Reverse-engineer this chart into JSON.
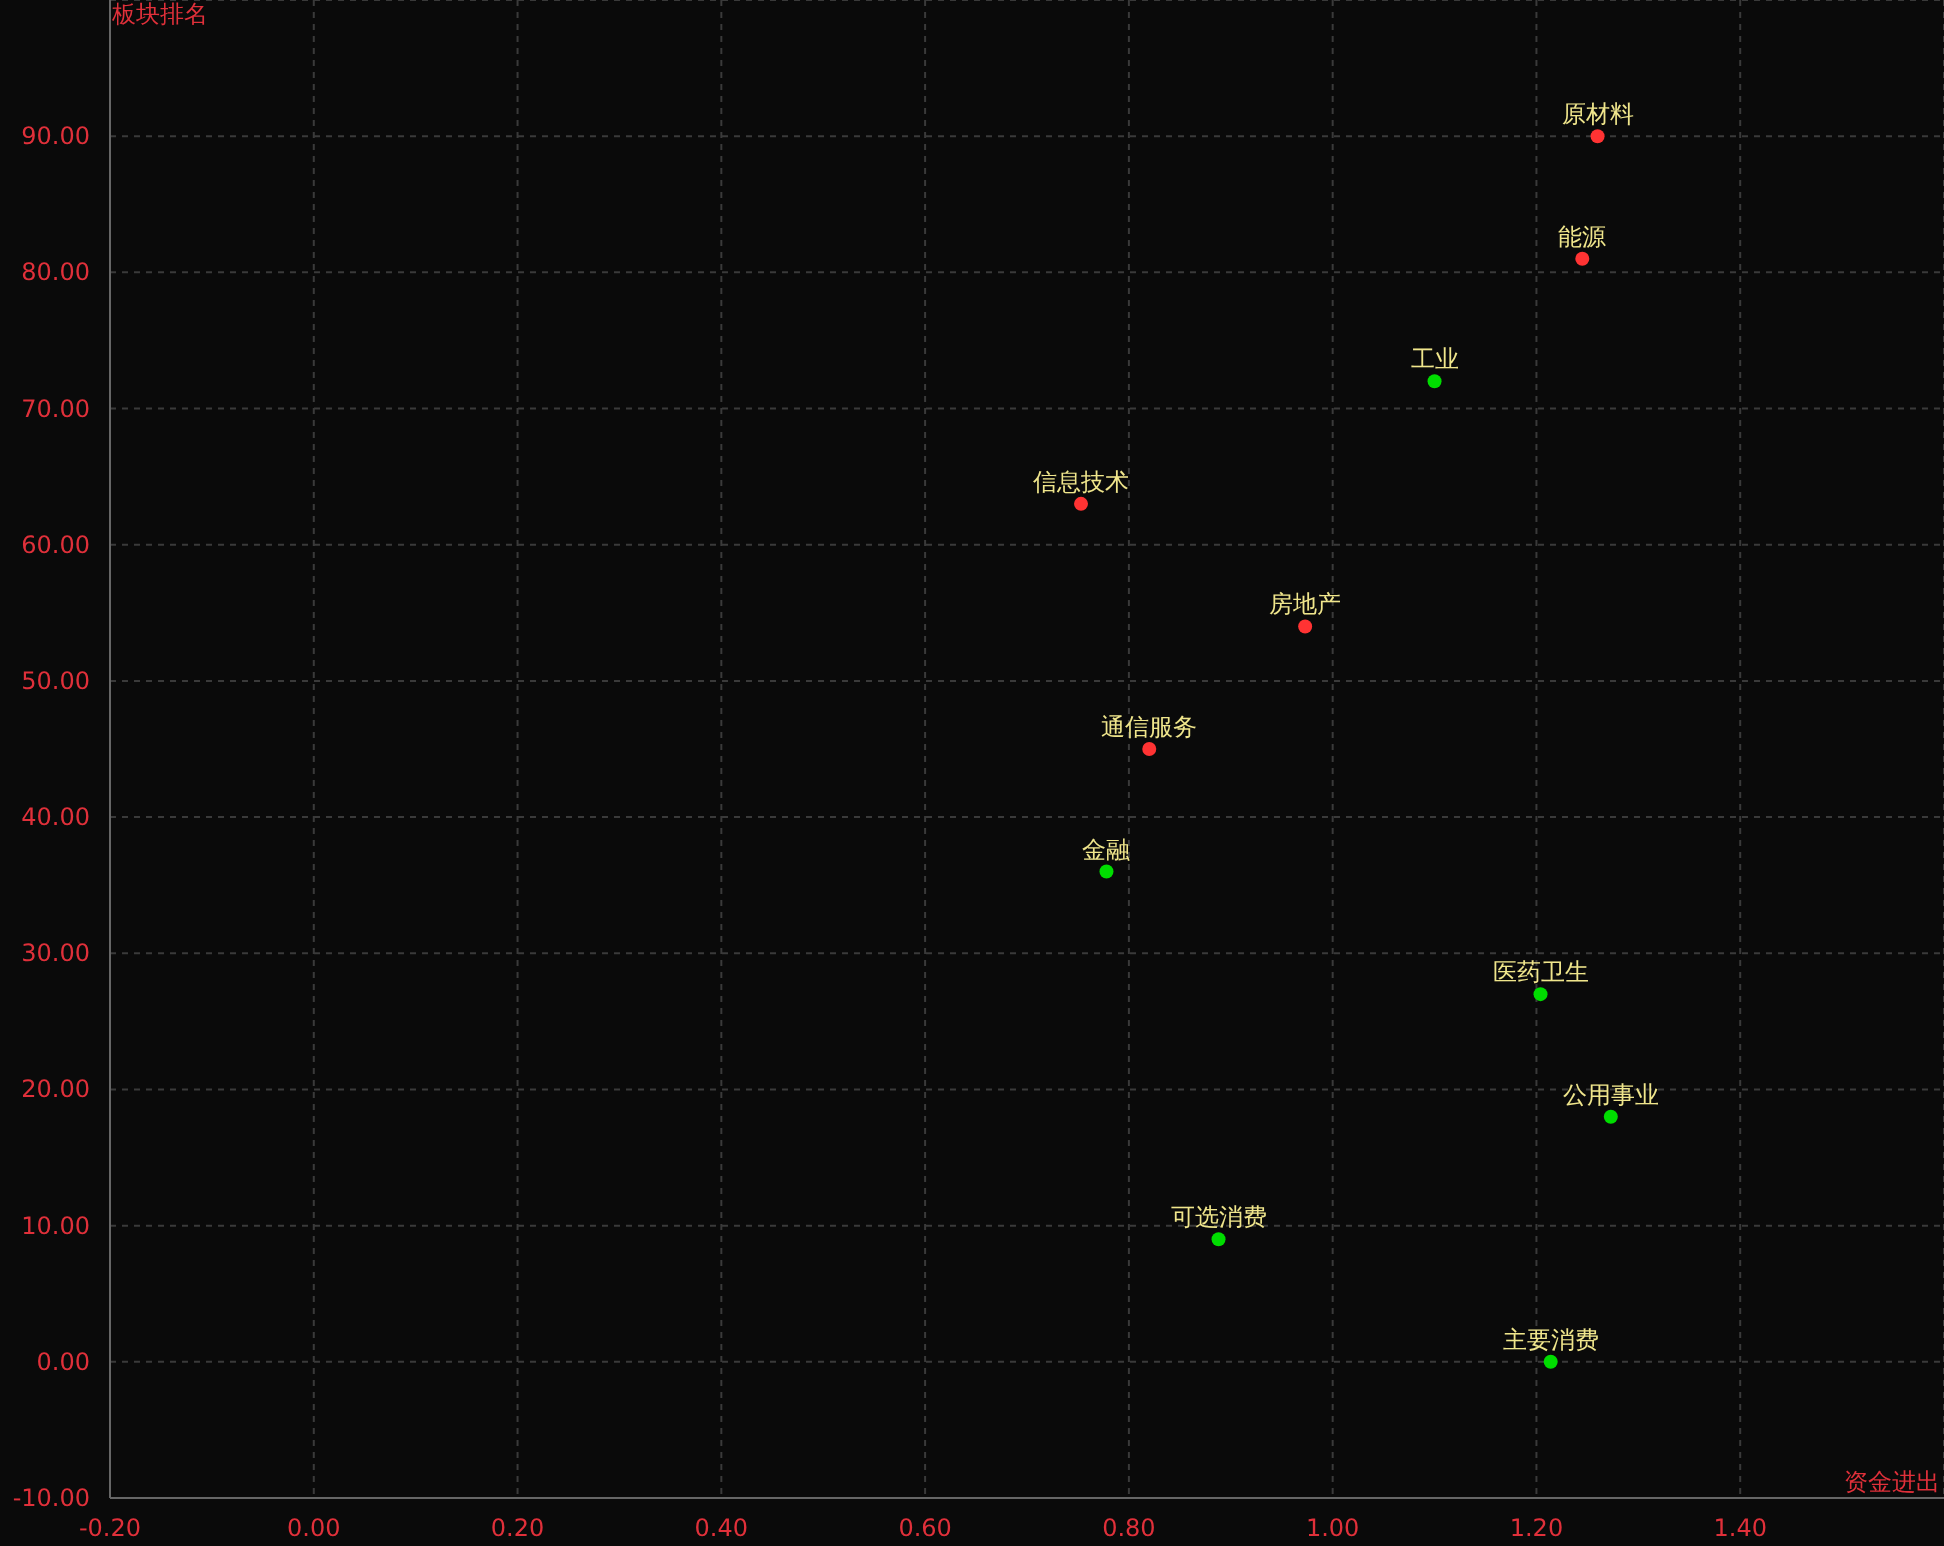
{
  "chart_data": {
    "type": "scatter",
    "xlabel": "资金进出",
    "ylabel": "板块排名",
    "xlim": [
      -0.2,
      1.6
    ],
    "ylim": [
      -10,
      100
    ],
    "xticks": [
      {
        "value": -0.2,
        "label": "-0.20"
      },
      {
        "value": 0,
        "label": "0.00"
      },
      {
        "value": 0.2,
        "label": "0.20"
      },
      {
        "value": 0.4,
        "label": "0.40"
      },
      {
        "value": 0.6,
        "label": "0.60"
      },
      {
        "value": 0.8,
        "label": "0.80"
      },
      {
        "value": 1,
        "label": "1.00"
      },
      {
        "value": 1.2,
        "label": "1.20"
      },
      {
        "value": 1.4,
        "label": "1.40"
      }
    ],
    "yticks": [
      {
        "value": -10,
        "label": "-10.00"
      },
      {
        "value": 0,
        "label": "0.00"
      },
      {
        "value": 10,
        "label": "10.00"
      },
      {
        "value": 20,
        "label": "20.00"
      },
      {
        "value": 30,
        "label": "30.00"
      },
      {
        "value": 40,
        "label": "40.00"
      },
      {
        "value": 50,
        "label": "50.00"
      },
      {
        "value": 60,
        "label": "60.00"
      },
      {
        "value": 70,
        "label": "70.00"
      },
      {
        "value": 80,
        "label": "80.00"
      },
      {
        "value": 90,
        "label": "90.00"
      }
    ],
    "grid": true,
    "line_style": "dashed",
    "marker": "circle",
    "series": [
      {
        "color": "#ff3333",
        "x": [
          1.26,
          1.245,
          0.753,
          0.973,
          0.82
        ],
        "values": [
          90,
          81,
          63,
          54,
          45
        ]
      },
      {
        "color": "#00dd00",
        "x": [
          1.1,
          0.778,
          1.204,
          1.273,
          0.888,
          1.214
        ],
        "values": [
          72,
          36,
          27,
          18,
          9,
          0
        ]
      }
    ],
    "annotations": [
      {
        "text": "原材料",
        "x": 1.26,
        "y": 90
      },
      {
        "text": "能源",
        "x": 1.245,
        "y": 81
      },
      {
        "text": "工业",
        "x": 1.1,
        "y": 72
      },
      {
        "text": "信息技术",
        "x": 0.753,
        "y": 63
      },
      {
        "text": "房地产",
        "x": 0.973,
        "y": 54
      },
      {
        "text": "通信服务",
        "x": 0.82,
        "y": 45
      },
      {
        "text": "金融",
        "x": 0.778,
        "y": 36
      },
      {
        "text": "医药卫生",
        "x": 1.204,
        "y": 27
      },
      {
        "text": "公用事业",
        "x": 1.273,
        "y": 18
      },
      {
        "text": "可选消费",
        "x": 0.888,
        "y": 9
      },
      {
        "text": "主要消费",
        "x": 1.214,
        "y": 0
      }
    ]
  }
}
